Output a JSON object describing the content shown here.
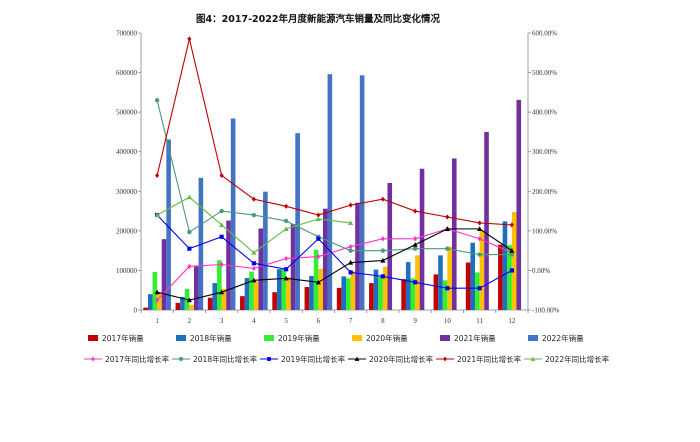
{
  "chart_data": {
    "type": "bar",
    "title": "图4：2017-2022年月度新能源汽车销量及同比变化情况",
    "categories": [
      "1",
      "2",
      "3",
      "4",
      "5",
      "6",
      "7",
      "8",
      "9",
      "10",
      "11",
      "12"
    ],
    "left_axis": {
      "min": 0,
      "max": 700000,
      "step": 100000,
      "tick_labels": [
        "0",
        "100000",
        "200000",
        "300000",
        "400000",
        "500000",
        "600000",
        "700000"
      ]
    },
    "right_axis": {
      "min": -100,
      "max": 600,
      "step": 100,
      "tick_labels": [
        "-100.00%",
        "0.00%",
        "100.00%",
        "200.00%",
        "300.00%",
        "400.00%",
        "500.00%",
        "600.00%"
      ]
    },
    "grid": false,
    "legend_position": "bottom",
    "bar_series": [
      {
        "name": "2017年销量",
        "color": "#c00000",
        "values": [
          6000,
          18000,
          31000,
          35000,
          45000,
          58000,
          56000,
          68000,
          78000,
          90000,
          120000,
          165000
        ]
      },
      {
        "name": "2018年销量",
        "color": "#1f6fbf",
        "values": [
          40000,
          33000,
          68000,
          81000,
          103000,
          86000,
          85000,
          102000,
          121000,
          138000,
          170000,
          224000
        ]
      },
      {
        "name": "2019年销量",
        "color": "#33ee33",
        "values": [
          96000,
          53000,
          126000,
          97000,
          104000,
          152000,
          80000,
          85000,
          80000,
          75000,
          95000,
          164000
        ]
      },
      {
        "name": "2020年销量",
        "color": "#ffc000",
        "values": [
          44000,
          13000,
          53000,
          72000,
          82000,
          104000,
          98000,
          109000,
          138000,
          160000,
          200000,
          248000
        ]
      },
      {
        "name": "2021年销量",
        "color": "#7030a0",
        "values": [
          179000,
          110000,
          226000,
          206000,
          217000,
          256000,
          271000,
          321000,
          357000,
          383000,
          450000,
          531000
        ]
      },
      {
        "name": "2022年销量",
        "color": "#4472c4",
        "values": [
          431000,
          334000,
          484000,
          299000,
          447000,
          596000,
          593000,
          0,
          0,
          0,
          0,
          0
        ]
      }
    ],
    "line_series": [
      {
        "name": "2017年同比增长率",
        "color": "#ff33cc",
        "marker": "diamond",
        "values": [
          -75,
          10,
          15,
          5,
          30,
          35,
          60,
          80,
          80,
          105,
          80,
          45
        ]
      },
      {
        "name": "2018年同比增长率",
        "color": "#4a9a7e",
        "marker": "circle",
        "values": [
          430,
          97,
          150,
          140,
          125,
          85,
          50,
          50,
          55,
          55,
          40,
          40
        ]
      },
      {
        "name": "2019年同比增长率",
        "color": "#0000ee",
        "marker": "square",
        "values": [
          140,
          55,
          85,
          18,
          3,
          80,
          -5,
          -15,
          -30,
          -45,
          -45,
          0
        ]
      },
      {
        "name": "2020年同比增长率",
        "color": "#000000",
        "marker": "triangle",
        "values": [
          -55,
          -75,
          -55,
          -25,
          -20,
          -30,
          20,
          25,
          65,
          105,
          105,
          50
        ]
      },
      {
        "name": "2021年同比增长率",
        "color": "#c00000",
        "marker": "diamond",
        "values": [
          240,
          585,
          240,
          180,
          162,
          140,
          165,
          180,
          150,
          135,
          120,
          115
        ]
      },
      {
        "name": "2022年同比增长率",
        "color": "#66bb44",
        "marker": "triangle",
        "values": [
          140,
          185,
          115,
          45,
          105,
          130,
          120,
          null,
          null,
          null,
          null,
          null
        ]
      }
    ]
  }
}
